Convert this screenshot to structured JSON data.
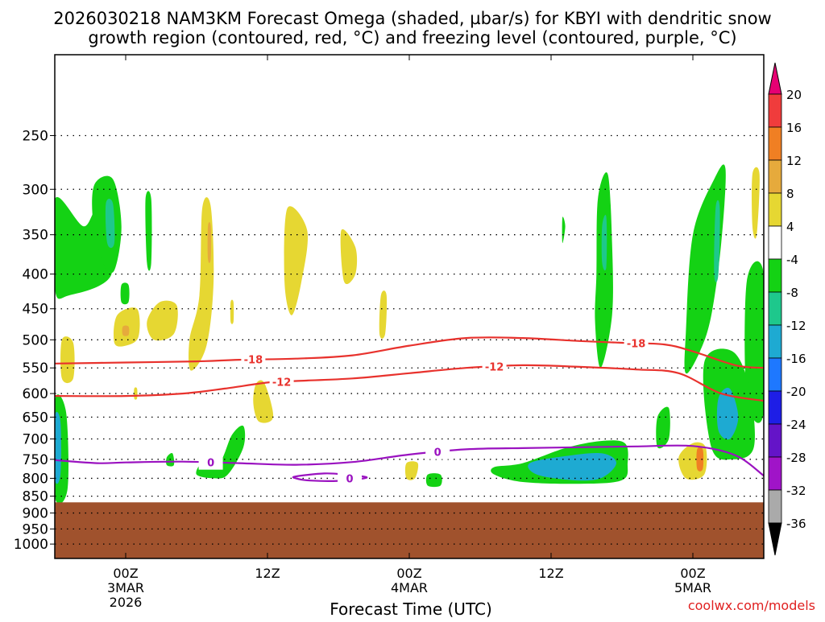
{
  "chart_data": {
    "type": "time-height cross section (shaded + contoured)",
    "title_line1": "2026030218 NAM3KM Forecast Omega (shaded, µbar/s) for KBYI with dendritic snow",
    "title_line2": "growth region (contoured, red, °C) and freezing level (contoured, purple, °C)",
    "xlabel": "Forecast Time (UTC)",
    "credit": "coolwx.com/models",
    "y_axis": {
      "scale": "log-pressure",
      "range_hpa": [
        1050,
        190
      ],
      "ticks": [
        "250",
        "300",
        "350",
        "400",
        "450",
        "500",
        "550",
        "600",
        "650",
        "700",
        "750",
        "800",
        "850",
        "900",
        "950",
        "1000"
      ],
      "tick_values": [
        250,
        300,
        350,
        400,
        450,
        500,
        550,
        600,
        650,
        700,
        750,
        800,
        850,
        900,
        950,
        1000
      ]
    },
    "x_axis": {
      "range_hours": [
        -5,
        45
      ],
      "ticks": [
        {
          "hour": 0,
          "label": "00Z",
          "sub1": "3MAR",
          "sub2": "2026"
        },
        {
          "hour": 10,
          "label": "12Z",
          "sub1": "",
          "sub2": ""
        },
        {
          "hour": 20,
          "label": "00Z",
          "sub1": "4MAR",
          "sub2": ""
        },
        {
          "hour": 30,
          "label": "12Z",
          "sub1": "",
          "sub2": ""
        },
        {
          "hour": 40,
          "label": "00Z",
          "sub1": "5MAR",
          "sub2": ""
        }
      ]
    },
    "grid": "dotted horizontal at pressure ticks",
    "colorbar": {
      "levels": [
        "20",
        "16",
        "12",
        "8",
        "4",
        "-4",
        "-8",
        "-12",
        "-16",
        "-20",
        "-24",
        "-28",
        "-32",
        "-36"
      ],
      "colors": [
        "#e60073",
        "#f03c3c",
        "#f07f23",
        "#e6aa3c",
        "#e6d732",
        "#ffffff",
        "#14d214",
        "#1ec88c",
        "#1eaad2",
        "#1e78ff",
        "#1e1ee6",
        "#6414c8",
        "#a014c8",
        "#aaaaaa",
        "#000000"
      ],
      "upper_arrow_color": "#e60073",
      "lower_arrow_color": "#000000"
    },
    "terrain": {
      "color": "#a0522d",
      "top_hpa": 868
    },
    "contours": [
      {
        "variable": "temperature",
        "value": -18,
        "label": "-18",
        "color": "#e8322d",
        "points": [
          [
            -5,
            542
          ],
          [
            0,
            540
          ],
          [
            5,
            538
          ],
          [
            8,
            535
          ],
          [
            12,
            533
          ],
          [
            16,
            527
          ],
          [
            20,
            510
          ],
          [
            24,
            497
          ],
          [
            28,
            497
          ],
          [
            32,
            502
          ],
          [
            35,
            505
          ],
          [
            38,
            508
          ],
          [
            40,
            520
          ],
          [
            43,
            545
          ],
          [
            45,
            550
          ]
        ]
      },
      {
        "variable": "temperature",
        "value": -12,
        "label": "-12",
        "color": "#e8322d",
        "points": [
          [
            -5,
            605
          ],
          [
            0,
            605
          ],
          [
            4,
            600
          ],
          [
            7,
            590
          ],
          [
            10,
            578
          ],
          [
            12,
            575
          ],
          [
            16,
            570
          ],
          [
            20,
            560
          ],
          [
            24,
            550
          ],
          [
            28,
            545
          ],
          [
            32,
            548
          ],
          [
            36,
            553
          ],
          [
            39,
            560
          ],
          [
            42,
            600
          ],
          [
            45,
            615
          ]
        ]
      },
      {
        "variable": "temperature",
        "value": 0,
        "label": "0",
        "color": "#9a12c0",
        "points": [
          [
            -5,
            752
          ],
          [
            -2,
            760
          ],
          [
            0,
            758
          ],
          [
            4,
            756
          ],
          [
            8,
            760
          ],
          [
            12,
            764
          ],
          [
            16,
            757
          ],
          [
            20,
            738
          ],
          [
            24,
            725
          ],
          [
            28,
            722
          ],
          [
            32,
            720
          ],
          [
            36,
            718
          ],
          [
            40,
            717
          ],
          [
            43,
            740
          ],
          [
            45,
            793
          ]
        ]
      },
      {
        "variable": "temperature",
        "value": 0,
        "label": "0",
        "color": "#9a12c0",
        "closed": true,
        "points": [
          [
            12,
            795
          ],
          [
            14,
            787
          ],
          [
            15.5,
            790
          ],
          [
            17,
            798
          ],
          [
            15,
            807
          ],
          [
            13,
            806
          ],
          [
            12,
            800
          ]
        ]
      }
    ],
    "omega_regions": [
      {
        "value": -6,
        "points": [
          [
            -5,
            310
          ],
          [
            -3,
            340
          ],
          [
            -2,
            325
          ],
          [
            -1,
            400
          ],
          [
            -4,
            430
          ],
          [
            -5,
            420
          ]
        ]
      },
      {
        "value": -6,
        "points": [
          [
            -2.2,
            295
          ],
          [
            -0.9,
            290
          ],
          [
            -0.3,
            340
          ],
          [
            -0.8,
            395
          ],
          [
            -1.6,
            385
          ],
          [
            -2.3,
            335
          ]
        ]
      },
      {
        "value": -10,
        "points": [
          [
            -1.4,
            315
          ],
          [
            -0.9,
            315
          ],
          [
            -0.8,
            360
          ],
          [
            -1.3,
            360
          ]
        ]
      },
      {
        "value": -6,
        "points": [
          [
            -0.3,
            415
          ],
          [
            0.2,
            415
          ],
          [
            0.2,
            440
          ],
          [
            -0.3,
            440
          ]
        ]
      },
      {
        "value": -6,
        "points": [
          [
            1.4,
            310
          ],
          [
            1.8,
            310
          ],
          [
            1.8,
            385
          ],
          [
            1.5,
            385
          ]
        ]
      },
      {
        "value": -6,
        "points": [
          [
            -5,
            615
          ],
          [
            -4.2,
            640
          ],
          [
            -4.1,
            830
          ],
          [
            -5,
            850
          ]
        ]
      },
      {
        "value": -12,
        "points": [
          [
            -5,
            650
          ],
          [
            -4.6,
            660
          ],
          [
            -4.6,
            790
          ],
          [
            -5,
            800
          ]
        ]
      },
      {
        "value": -6,
        "points": [
          [
            7.5,
            690
          ],
          [
            8.3,
            670
          ],
          [
            8.3,
            720
          ],
          [
            7.2,
            790
          ],
          [
            6.2,
            800
          ],
          [
            5,
            790
          ],
          [
            5.4,
            760
          ],
          [
            6.6,
            760
          ]
        ]
      },
      {
        "value": -6,
        "points": [
          [
            2.9,
            745
          ],
          [
            3.3,
            735
          ],
          [
            3.4,
            765
          ],
          [
            2.9,
            765
          ]
        ]
      },
      {
        "value": -6,
        "points": [
          [
            21.3,
            790
          ],
          [
            22.2,
            790
          ],
          [
            22.2,
            820
          ],
          [
            21.3,
            820
          ]
        ]
      },
      {
        "value": -6,
        "points": [
          [
            26,
            770
          ],
          [
            28,
            760
          ],
          [
            31,
            722
          ],
          [
            33.5,
            705
          ],
          [
            35.2,
            710
          ],
          [
            35.4,
            760
          ],
          [
            35,
            805
          ],
          [
            32,
            815
          ],
          [
            28,
            810
          ],
          [
            26,
            790
          ]
        ]
      },
      {
        "value": -12,
        "points": [
          [
            28.5,
            760
          ],
          [
            31,
            742
          ],
          [
            33.6,
            735
          ],
          [
            34.6,
            760
          ],
          [
            33.5,
            800
          ],
          [
            31.5,
            805
          ],
          [
            29,
            790
          ]
        ]
      },
      {
        "value": -6,
        "points": [
          [
            33.3,
            310
          ],
          [
            34.0,
            285
          ],
          [
            34.3,
            360
          ],
          [
            34.3,
            460
          ],
          [
            33.5,
            550
          ],
          [
            33.1,
            470
          ],
          [
            33.2,
            400
          ]
        ]
      },
      {
        "value": -10,
        "points": [
          [
            33.6,
            340
          ],
          [
            33.9,
            330
          ],
          [
            33.9,
            390
          ],
          [
            33.6,
            385
          ]
        ]
      },
      {
        "value": -6,
        "points": [
          [
            30.8,
            330
          ],
          [
            31.0,
            340
          ],
          [
            30.8,
            360
          ]
        ]
      },
      {
        "value": -6,
        "points": [
          [
            40,
            350
          ],
          [
            41.5,
            290
          ],
          [
            42.3,
            280
          ],
          [
            42.0,
            360
          ],
          [
            41.3,
            460
          ],
          [
            40.5,
            520
          ],
          [
            39.5,
            560
          ],
          [
            39.5,
            490
          ]
        ]
      },
      {
        "value": -10,
        "points": [
          [
            41.6,
            320
          ],
          [
            41.9,
            320
          ],
          [
            41.8,
            400
          ],
          [
            41.5,
            400
          ]
        ]
      },
      {
        "value": -6,
        "points": [
          [
            43.8,
            410
          ],
          [
            45,
            400
          ],
          [
            45,
            640
          ],
          [
            43.8,
            610
          ]
        ]
      },
      {
        "value": -6,
        "points": [
          [
            40.8,
            540
          ],
          [
            42.8,
            520
          ],
          [
            44,
            590
          ],
          [
            44.3,
            720
          ],
          [
            42.8,
            750
          ],
          [
            41.3,
            720
          ]
        ]
      },
      {
        "value": -14,
        "points": [
          [
            41.8,
            610
          ],
          [
            42.6,
            590
          ],
          [
            43.2,
            650
          ],
          [
            42.6,
            700
          ],
          [
            41.8,
            680
          ]
        ]
      },
      {
        "value": -6,
        "points": [
          [
            37.5,
            650
          ],
          [
            38.3,
            630
          ],
          [
            38.3,
            700
          ],
          [
            37.5,
            720
          ]
        ]
      },
      {
        "value": 6,
        "points": [
          [
            -4.5,
            500
          ],
          [
            -3.7,
            505
          ],
          [
            -3.7,
            570
          ],
          [
            -4.5,
            570
          ]
        ]
      },
      {
        "value": 6,
        "points": [
          [
            -0.6,
            460
          ],
          [
            0.8,
            450
          ],
          [
            0.9,
            495
          ],
          [
            0,
            510
          ],
          [
            -0.8,
            505
          ]
        ]
      },
      {
        "value": 8,
        "points": [
          [
            -0.2,
            478
          ],
          [
            0.2,
            478
          ],
          [
            0.2,
            492
          ],
          [
            -0.2,
            492
          ]
        ]
      },
      {
        "value": 6,
        "points": [
          [
            0.6,
            590
          ],
          [
            0.8,
            590
          ],
          [
            0.8,
            610
          ],
          [
            0.6,
            610
          ]
        ]
      },
      {
        "value": 6,
        "points": [
          [
            1.5,
            470
          ],
          [
            2.4,
            440
          ],
          [
            3.6,
            445
          ],
          [
            3.4,
            490
          ],
          [
            2,
            500
          ]
        ]
      },
      {
        "value": 6,
        "points": [
          [
            5.4,
            320
          ],
          [
            6.0,
            318
          ],
          [
            6.2,
            410
          ],
          [
            5.7,
            510
          ],
          [
            4.6,
            555
          ],
          [
            4.5,
            500
          ],
          [
            5.2,
            430
          ]
        ]
      },
      {
        "value": 8,
        "points": [
          [
            5.8,
            340
          ],
          [
            6.0,
            340
          ],
          [
            6.0,
            380
          ],
          [
            5.8,
            380
          ]
        ]
      },
      {
        "value": 6,
        "points": [
          [
            7.4,
            440
          ],
          [
            7.6,
            440
          ],
          [
            7.6,
            470
          ],
          [
            7.4,
            470
          ]
        ]
      },
      {
        "value": 6,
        "points": [
          [
            9.2,
            580
          ],
          [
            9.8,
            580
          ],
          [
            10.4,
            650
          ],
          [
            9.4,
            660
          ],
          [
            9.0,
            620
          ]
        ]
      },
      {
        "value": 6,
        "points": [
          [
            11.4,
            320
          ],
          [
            12.8,
            345
          ],
          [
            12.4,
            410
          ],
          [
            11.7,
            460
          ],
          [
            11.2,
            410
          ]
        ]
      },
      {
        "value": 6,
        "points": [
          [
            15.2,
            345
          ],
          [
            16.2,
            365
          ],
          [
            16.2,
            400
          ],
          [
            15.4,
            410
          ]
        ]
      },
      {
        "value": 6,
        "points": [
          [
            18.0,
            430
          ],
          [
            18.4,
            430
          ],
          [
            18.3,
            490
          ],
          [
            17.9,
            490
          ]
        ]
      },
      {
        "value": 6,
        "points": [
          [
            19.8,
            760
          ],
          [
            20.6,
            760
          ],
          [
            20.4,
            800
          ],
          [
            19.8,
            800
          ]
        ]
      },
      {
        "value": 6,
        "points": [
          [
            39,
            745
          ],
          [
            40,
            710
          ],
          [
            40.9,
            720
          ],
          [
            40.8,
            790
          ],
          [
            39.5,
            800
          ]
        ]
      },
      {
        "value": 12,
        "points": [
          [
            40.3,
            725
          ],
          [
            40.7,
            725
          ],
          [
            40.7,
            775
          ],
          [
            40.3,
            775
          ]
        ]
      },
      {
        "value": 6,
        "points": [
          [
            44.2,
            285
          ],
          [
            44.7,
            285
          ],
          [
            44.5,
            350
          ],
          [
            44.2,
            340
          ]
        ]
      }
    ]
  }
}
